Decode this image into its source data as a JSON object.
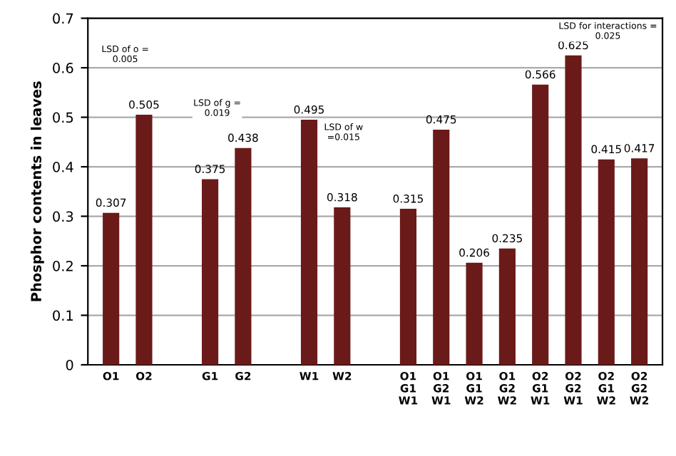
{
  "chart_data": {
    "type": "bar",
    "ylabel": "Phosphor contents in leaves",
    "categories": [
      "O1",
      "O2",
      null,
      "G1",
      "G2",
      null,
      "W1",
      "W2",
      null,
      "O1\nG1\nW1",
      "O1\nG2\nW1",
      "O1\nG1\nW2",
      "O1\nG2\nW2",
      "O2\nG1\nW1",
      "O2\nG2\nW1",
      "O2\nG1\nW2",
      "O2\nG2\nW2"
    ],
    "values": [
      0.307,
      0.505,
      null,
      0.375,
      0.438,
      null,
      0.495,
      0.318,
      null,
      0.315,
      0.475,
      0.206,
      0.235,
      0.566,
      0.625,
      0.415,
      0.417
    ],
    "color": "#6b1a1a",
    "data_labels": true,
    "ylim": [
      0,
      0.7
    ],
    "yticks": [
      0,
      0.1,
      0.2,
      0.3,
      0.4,
      0.5,
      0.6,
      0.7
    ],
    "grid": "y",
    "annotations": [
      "LSD of o =\n0.005",
      "LSD of g =\n0.019",
      "LSD of w\n=0.015",
      "LSD for interactions =\n0.025"
    ]
  }
}
